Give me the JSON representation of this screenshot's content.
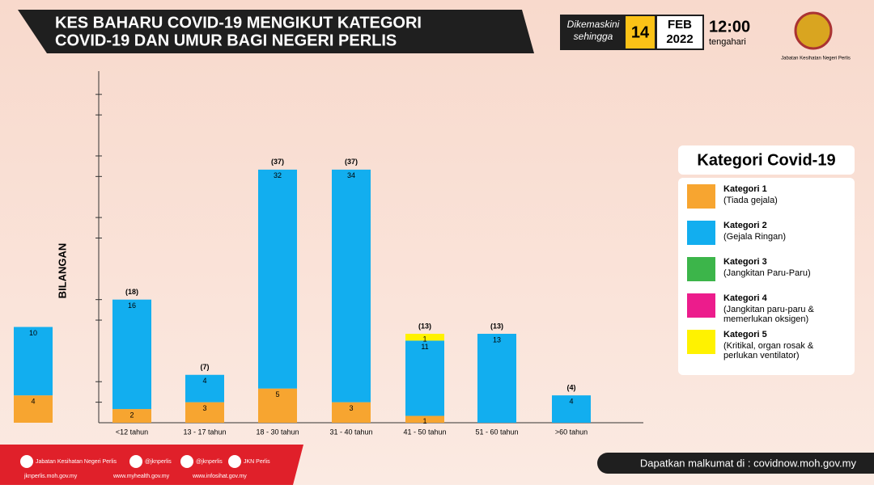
{
  "header": {
    "title_line1": "KES BAHARU COVID-19 MENGIKUT KATEGORI",
    "title_line2": "COVID-19 DAN UMUR BAGI NEGERI PERLIS",
    "updated_label1": "Dikemaskini",
    "updated_label2": "sehingga",
    "day": "14",
    "month": "FEB",
    "year": "2022",
    "time": "12:00",
    "time_note": "tengahari",
    "agency": "Jabatan Kesihatan Negeri Perlis"
  },
  "chart_data": {
    "type": "stacked_bar",
    "y_label": "BILANGAN",
    "categories": [
      null,
      "<12 tahun",
      "13 - 17 tahun",
      "18 - 30 tahun",
      "31 - 40 tahun",
      "41 - 50 tahun",
      "51 - 60 tahun",
      ">60 tahun"
    ],
    "series": [
      {
        "name": "Kategori 1",
        "description": "(Tiada gejala)",
        "color": "#f7a530",
        "values": [
          4,
          2,
          3,
          5,
          3,
          1,
          null,
          null
        ]
      },
      {
        "name": "Kategori 2",
        "description": "(Gejala Ringan)",
        "color": "#12aeef",
        "values": [
          10,
          16,
          4,
          32,
          34,
          11,
          13,
          4
        ]
      },
      {
        "name": "Kategori 3",
        "description": "(Jangkitan Paru-Paru)",
        "color": "#3cb54a",
        "values": [
          null,
          null,
          null,
          null,
          null,
          null,
          null,
          null
        ]
      },
      {
        "name": "Kategori 4",
        "description": "(Jangkitan paru-paru & memerlukan oksigen)",
        "color": "#ec1c8c",
        "values": [
          null,
          null,
          null,
          null,
          null,
          null,
          null,
          null
        ]
      },
      {
        "name": "Kategori 5",
        "description": "(Kritikal, organ rosak & perlukan ventilator)",
        "color": "#fff200",
        "values": [
          null,
          null,
          null,
          null,
          null,
          1,
          null,
          null
        ]
      }
    ],
    "totals": [
      null,
      18,
      7,
      37,
      37,
      13,
      13,
      4
    ],
    "total_labels": [
      null,
      "(18)",
      "(7)",
      "(37)",
      "(37)",
      "(13)",
      "(13)",
      "(4)"
    ],
    "ylim": [
      0,
      51.4
    ],
    "yticks": [
      3,
      6,
      15,
      18,
      27,
      30,
      36,
      39,
      45,
      48
    ],
    "legend_title": "Kategori Covid-19"
  },
  "footer": {
    "facebook": "Jabatan Kesihatan Negeri Perlis",
    "twitter": "@jknperlis",
    "instagram": "@jknperlis",
    "youtube": "JKN Perlis",
    "site1": "jknperlis.moh.gov.my",
    "site2": "www.myhealth.gov.my",
    "site3": "www.infosihat.gov.my",
    "info": "Dapatkan malkumat di : covidnow.moh.gov.my"
  }
}
